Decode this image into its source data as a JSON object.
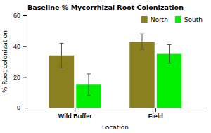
{
  "chart_data": {
    "type": "bar",
    "title": "Baseline % Mycorrhizal Root Colonization",
    "xlabel": "Location",
    "ylabel": "% Root colonization",
    "categories": [
      "Wild Buffer",
      "Field"
    ],
    "series": [
      {
        "name": "North",
        "color": "#8B8020",
        "values": [
          34,
          43
        ],
        "errors": [
          8,
          5
        ]
      },
      {
        "name": "South",
        "color": "#00EE00",
        "values": [
          15,
          35
        ],
        "errors": [
          7,
          6
        ]
      }
    ],
    "ylim": [
      0,
      60
    ],
    "yticks": [
      0,
      20,
      40,
      60
    ],
    "legend": "upper right"
  }
}
